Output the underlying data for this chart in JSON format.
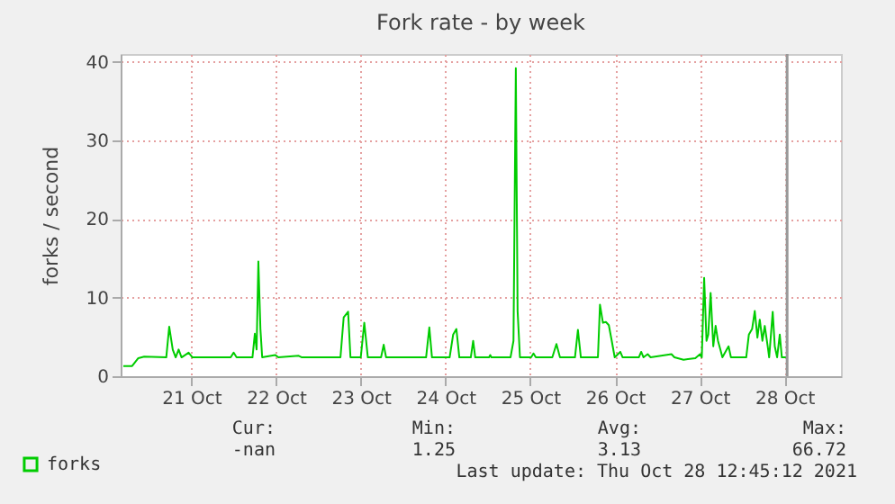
{
  "chart_data": {
    "type": "line",
    "title": "Fork rate - by week",
    "ylabel": "forks / second",
    "x": [
      "2021-10-20T16:45",
      "2021-10-20T19:15",
      "2021-10-20T21:00",
      "2021-10-20T22:40",
      "2021-10-21T04:55",
      "2021-10-21T05:45",
      "2021-10-21T06:45",
      "2021-10-21T07:35",
      "2021-10-21T08:25",
      "2021-10-21T09:15",
      "2021-10-21T11:15",
      "2021-10-21T12:20",
      "2021-10-21T23:10",
      "2021-10-22T00:00",
      "2021-10-22T00:50",
      "2021-10-22T05:20",
      "2021-10-22T06:00",
      "2021-10-22T06:30",
      "2021-10-22T07:00",
      "2021-10-22T07:35",
      "2021-10-22T08:05",
      "2021-10-22T11:45",
      "2021-10-22T12:40",
      "2021-10-22T18:25",
      "2021-10-22T19:20",
      "2021-10-23T06:15",
      "2021-10-23T07:10",
      "2021-10-23T08:25",
      "2021-10-23T09:05",
      "2021-10-23T12:00",
      "2021-10-23T13:00",
      "2021-10-23T14:00",
      "2021-10-23T17:45",
      "2021-10-23T18:30",
      "2021-10-23T19:10",
      "2021-10-24T06:30",
      "2021-10-24T07:25",
      "2021-10-24T08:10",
      "2021-10-24T13:10",
      "2021-10-24T14:10",
      "2021-10-24T15:05",
      "2021-10-24T15:55",
      "2021-10-24T19:10",
      "2021-10-24T19:50",
      "2021-10-24T20:25",
      "2021-10-25T00:20",
      "2021-10-25T00:40",
      "2021-10-25T01:00",
      "2021-10-25T06:25",
      "2021-10-25T07:15",
      "2021-10-25T07:55",
      "2021-10-25T08:25",
      "2021-10-25T09:05",
      "2021-10-25T12:15",
      "2021-10-25T12:55",
      "2021-10-25T13:35",
      "2021-10-25T18:15",
      "2021-10-25T19:25",
      "2021-10-25T20:25",
      "2021-10-26T00:40",
      "2021-10-26T01:30",
      "2021-10-26T02:20",
      "2021-10-26T07:10",
      "2021-10-26T07:45",
      "2021-10-26T08:35",
      "2021-10-26T09:25",
      "2021-10-26T10:15",
      "2021-10-26T11:05",
      "2021-10-26T11:55",
      "2021-10-26T13:30",
      "2021-10-26T14:10",
      "2021-10-26T18:45",
      "2021-10-26T19:25",
      "2021-10-26T20:05",
      "2021-10-26T21:15",
      "2021-10-26T22:05",
      "2021-10-27T04:00",
      "2021-10-27T04:50",
      "2021-10-27T07:25",
      "2021-10-27T10:45",
      "2021-10-27T12:05",
      "2021-10-27T12:35",
      "2021-10-27T13:15",
      "2021-10-27T13:55",
      "2021-10-27T14:25",
      "2021-10-27T15:05",
      "2021-10-27T15:50",
      "2021-10-27T16:30",
      "2021-10-27T17:10",
      "2021-10-27T17:50",
      "2021-10-27T18:25",
      "2021-10-27T20:10",
      "2021-10-27T20:50",
      "2021-10-28T01:10",
      "2021-10-28T01:55",
      "2021-10-28T02:50",
      "2021-10-28T03:35",
      "2021-10-28T04:20",
      "2021-10-28T05:00",
      "2021-10-28T05:45",
      "2021-10-28T06:25",
      "2021-10-28T07:15",
      "2021-10-28T07:40",
      "2021-10-28T08:40",
      "2021-10-28T09:15",
      "2021-10-28T09:55",
      "2021-10-28T10:40",
      "2021-10-28T11:15",
      "2021-10-28T12:40"
    ],
    "series": [
      {
        "name": "forks",
        "color": "#00cc00",
        "values": [
          1.3,
          1.3,
          2.3,
          2.5,
          2.4,
          6.3,
          3.4,
          2.4,
          3.4,
          2.4,
          3.0,
          2.4,
          2.4,
          3.0,
          2.4,
          2.4,
          5.4,
          3.4,
          14.6,
          6.0,
          2.4,
          2.7,
          2.4,
          2.6,
          2.4,
          2.4,
          7.5,
          8.2,
          2.4,
          2.4,
          6.8,
          2.4,
          2.4,
          4.0,
          2.4,
          2.4,
          6.2,
          2.4,
          2.4,
          5.3,
          6.0,
          2.4,
          2.4,
          4.5,
          2.4,
          2.4,
          2.7,
          2.4,
          2.4,
          4.5,
          39.2,
          8.3,
          2.4,
          2.4,
          2.9,
          2.4,
          2.4,
          4.1,
          2.4,
          2.4,
          5.9,
          2.4,
          2.4,
          9.1,
          6.8,
          6.9,
          6.5,
          4.5,
          2.4,
          3.1,
          2.4,
          2.4,
          3.1,
          2.4,
          2.8,
          2.4,
          2.8,
          2.4,
          2.1,
          2.3,
          2.8,
          2.4,
          12.5,
          4.5,
          5.3,
          10.6,
          3.8,
          6.4,
          4.5,
          3.4,
          2.4,
          3.8,
          2.4,
          2.4,
          5.3,
          6.0,
          8.3,
          4.9,
          7.2,
          4.5,
          6.4,
          3.8,
          2.4,
          8.2,
          3.8,
          2.4,
          5.3,
          2.4,
          2.4
        ]
      }
    ],
    "xlim": [
      "2021-10-20T16:00",
      "2021-10-29T04:00"
    ],
    "xticks": [
      {
        "value": "2021-10-21T12:00",
        "label": "21 Oct"
      },
      {
        "value": "2021-10-22T12:00",
        "label": "22 Oct"
      },
      {
        "value": "2021-10-23T12:00",
        "label": "23 Oct"
      },
      {
        "value": "2021-10-24T12:00",
        "label": "24 Oct"
      },
      {
        "value": "2021-10-25T12:00",
        "label": "25 Oct"
      },
      {
        "value": "2021-10-26T12:00",
        "label": "26 Oct"
      },
      {
        "value": "2021-10-27T12:00",
        "label": "27 Oct"
      },
      {
        "value": "2021-10-28T12:00",
        "label": "28 Oct"
      }
    ],
    "ylim": [
      0,
      41
    ],
    "yticks": [
      0,
      10,
      20,
      30,
      40
    ],
    "grid": true,
    "legend": "bottom left",
    "line_style": "solid",
    "ref_lines": [
      {
        "axis": "x",
        "value": "2021-10-28T12:45",
        "color": "#999999"
      }
    ],
    "annotations": [
      "Cur:",
      "Min:",
      "Avg:",
      "Max:",
      "-nan",
      "1.25",
      "3.13",
      "66.72",
      "Last update: Thu Oct 28 12:45:12 2021"
    ]
  }
}
